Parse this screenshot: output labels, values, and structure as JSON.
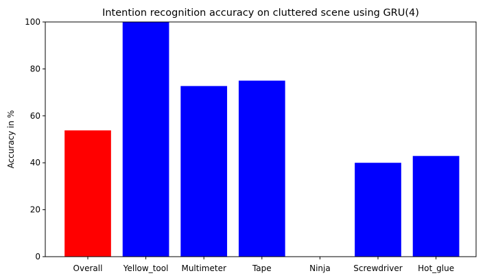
{
  "chart_data": {
    "type": "bar",
    "title": "Intention recognition accuracy on cluttered scene using GRU(4)",
    "xlabel": "",
    "ylabel": "Accuracy in %",
    "ylim": [
      0,
      100
    ],
    "yticks": [
      0,
      20,
      40,
      60,
      80,
      100
    ],
    "categories": [
      "Overall",
      "Yellow_tool",
      "Multimeter",
      "Tape",
      "Ninja",
      "Screwdriver",
      "Hot_glue"
    ],
    "values": [
      53.8,
      100,
      72.7,
      75,
      0,
      40,
      42.9
    ],
    "colors": [
      "#ff0000",
      "#0000ff",
      "#0000ff",
      "#0000ff",
      "#0000ff",
      "#0000ff",
      "#0000ff"
    ],
    "grid": false,
    "legend": "none"
  }
}
